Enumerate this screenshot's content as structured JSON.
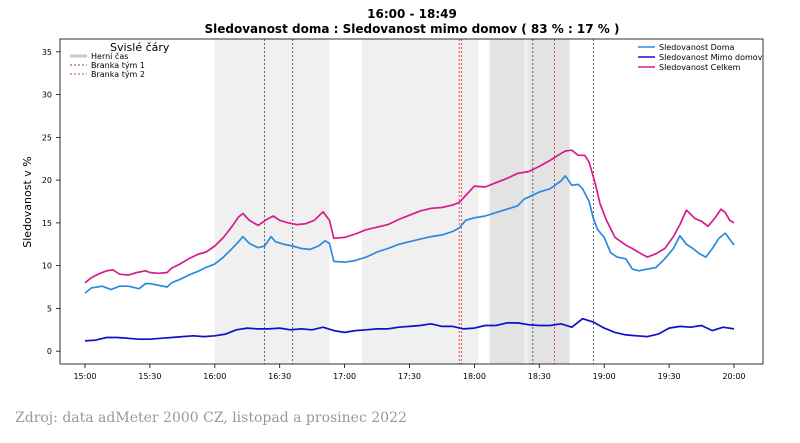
{
  "chart_data": {
    "type": "line",
    "title": "16:00 - 18:49",
    "subtitle": "Sledovanost doma : Sledovanost mimo domov ( 83 % : 17 % )",
    "ylabel": "Sledovanost v %",
    "xlabel": "",
    "xlim": [
      0,
      300
    ],
    "ylim": [
      -1.5,
      36.5
    ],
    "y_ticks": [
      0,
      5,
      10,
      15,
      20,
      25,
      30,
      35
    ],
    "x_ticks": [
      {
        "value": 0,
        "label": "15:00"
      },
      {
        "value": 30,
        "label": "15:30"
      },
      {
        "value": 60,
        "label": "16:00"
      },
      {
        "value": 90,
        "label": "16:30"
      },
      {
        "value": 120,
        "label": "17:00"
      },
      {
        "value": 150,
        "label": "17:30"
      },
      {
        "value": 180,
        "label": "18:00"
      },
      {
        "value": 210,
        "label": "18:30"
      },
      {
        "value": 240,
        "label": "19:00"
      },
      {
        "value": 270,
        "label": "19:30"
      },
      {
        "value": 300,
        "label": "20:00"
      }
    ],
    "legend_left": {
      "title": "Svislé čáry",
      "items": [
        {
          "label": "Herní čas",
          "color": "#c8c8c8",
          "style": "solid"
        },
        {
          "label": "Branka tým 1",
          "color": "#555555",
          "style": "dotted"
        },
        {
          "label": "Branka tým 2",
          "color": "#e04040",
          "style": "dotted"
        }
      ]
    },
    "legend_right": [
      {
        "label": "Sledovanost Doma",
        "color": "#2a8ae0"
      },
      {
        "label": "Sledovanost Mimo domov",
        "color": "#1010c8"
      },
      {
        "label": "Sledovanost Celkem",
        "color": "#d81b8c"
      }
    ],
    "game_periods": [
      {
        "start": 60,
        "end": 113,
        "shade": "#f0f0f0"
      },
      {
        "start": 128,
        "end": 182,
        "shade": "#f0f0f0"
      },
      {
        "start": 187,
        "end": 203,
        "shade": "#e3e3e3"
      },
      {
        "start": 203,
        "end": 205,
        "shade": "#f0f0f0"
      },
      {
        "start": 205,
        "end": 224,
        "shade": "#e3e3e3"
      }
    ],
    "goal_team1": [
      83,
      96,
      207,
      235
    ],
    "goal_team2": [
      173,
      174,
      217
    ],
    "series": [
      {
        "name": "Sledovanost Doma",
        "color": "#2a8ae0",
        "x": [
          0,
          3,
          8,
          12,
          16,
          20,
          25,
          28,
          30,
          34,
          38,
          40,
          44,
          48,
          52,
          56,
          60,
          64,
          68,
          71,
          73,
          76,
          80,
          83,
          86,
          88,
          92,
          96,
          100,
          104,
          108,
          111,
          113,
          115,
          120,
          125,
          130,
          135,
          140,
          145,
          150,
          155,
          160,
          165,
          170,
          173,
          176,
          180,
          185,
          190,
          195,
          200,
          203,
          205,
          210,
          215,
          220,
          222,
          225,
          228,
          230,
          233,
          235,
          237,
          240,
          243,
          246,
          250,
          253,
          256,
          260,
          264,
          268,
          272,
          275,
          278,
          281,
          284,
          287,
          290,
          293,
          296,
          300
        ],
        "values": [
          6.8,
          7.4,
          7.6,
          7.2,
          7.6,
          7.6,
          7.3,
          7.9,
          7.9,
          7.7,
          7.5,
          8.0,
          8.4,
          8.9,
          9.3,
          9.8,
          10.2,
          11.0,
          12.0,
          12.8,
          13.4,
          12.6,
          12.1,
          12.3,
          13.4,
          12.8,
          12.5,
          12.3,
          12.0,
          11.9,
          12.3,
          12.9,
          12.6,
          10.5,
          10.4,
          10.6,
          11.0,
          11.6,
          12.0,
          12.5,
          12.8,
          13.1,
          13.4,
          13.6,
          14.0,
          14.4,
          15.3,
          15.6,
          15.8,
          16.2,
          16.6,
          17.0,
          17.8,
          18.0,
          18.6,
          19.0,
          19.9,
          20.5,
          19.4,
          19.5,
          19.0,
          17.5,
          15.5,
          14.2,
          13.3,
          11.5,
          11.0,
          10.8,
          9.6,
          9.4,
          9.6,
          9.8,
          10.8,
          12.0,
          13.5,
          12.5,
          12.0,
          11.4,
          11.0,
          12.0,
          13.2,
          13.8,
          12.4
        ]
      },
      {
        "name": "Sledovanost Mimo domov",
        "color": "#1010c8",
        "x": [
          0,
          5,
          10,
          15,
          20,
          25,
          30,
          35,
          40,
          45,
          50,
          55,
          60,
          65,
          70,
          75,
          80,
          85,
          90,
          95,
          100,
          105,
          110,
          115,
          120,
          125,
          130,
          135,
          140,
          145,
          150,
          155,
          160,
          165,
          170,
          175,
          180,
          185,
          190,
          195,
          200,
          205,
          210,
          215,
          220,
          225,
          230,
          235,
          240,
          245,
          250,
          255,
          260,
          265,
          270,
          275,
          280,
          285,
          290,
          295,
          300
        ],
        "values": [
          1.2,
          1.3,
          1.6,
          1.6,
          1.5,
          1.4,
          1.4,
          1.5,
          1.6,
          1.7,
          1.8,
          1.7,
          1.8,
          2.0,
          2.5,
          2.7,
          2.6,
          2.6,
          2.7,
          2.5,
          2.6,
          2.5,
          2.8,
          2.4,
          2.2,
          2.4,
          2.5,
          2.6,
          2.6,
          2.8,
          2.9,
          3.0,
          3.2,
          2.9,
          2.9,
          2.6,
          2.7,
          3.0,
          3.0,
          3.3,
          3.3,
          3.1,
          3.0,
          3.0,
          3.2,
          2.8,
          3.8,
          3.4,
          2.7,
          2.2,
          1.9,
          1.8,
          1.7,
          2.0,
          2.7,
          2.9,
          2.8,
          3.0,
          2.4,
          2.8,
          2.6
        ]
      },
      {
        "name": "Sledovanost Celkem",
        "color": "#d81b8c",
        "x": [
          0,
          3,
          6,
          10,
          13,
          16,
          20,
          24,
          28,
          30,
          34,
          38,
          40,
          44,
          48,
          52,
          56,
          60,
          64,
          68,
          71,
          73,
          76,
          80,
          84,
          87,
          90,
          94,
          98,
          102,
          106,
          110,
          113,
          115,
          120,
          125,
          130,
          135,
          140,
          145,
          150,
          155,
          160,
          165,
          170,
          173,
          176,
          180,
          185,
          190,
          195,
          200,
          205,
          210,
          215,
          218,
          222,
          225,
          228,
          231,
          233,
          236,
          238,
          241,
          245,
          250,
          253,
          257,
          260,
          264,
          268,
          272,
          275,
          278,
          282,
          285,
          288,
          291,
          294,
          296,
          298,
          300
        ],
        "values": [
          8.0,
          8.6,
          9.0,
          9.4,
          9.5,
          9.0,
          8.9,
          9.2,
          9.4,
          9.2,
          9.1,
          9.2,
          9.7,
          10.2,
          10.8,
          11.3,
          11.6,
          12.3,
          13.3,
          14.6,
          15.7,
          16.1,
          15.3,
          14.7,
          15.4,
          15.8,
          15.3,
          15.0,
          14.8,
          14.9,
          15.3,
          16.3,
          15.3,
          13.2,
          13.3,
          13.7,
          14.2,
          14.5,
          14.8,
          15.4,
          15.9,
          16.4,
          16.7,
          16.8,
          17.1,
          17.4,
          18.2,
          19.3,
          19.2,
          19.7,
          20.2,
          20.8,
          21.0,
          21.6,
          22.3,
          22.8,
          23.4,
          23.5,
          22.9,
          22.9,
          22.1,
          19.5,
          17.3,
          15.3,
          13.3,
          12.4,
          12.0,
          11.4,
          11.0,
          11.4,
          12.0,
          13.4,
          14.8,
          16.5,
          15.5,
          15.2,
          14.6,
          15.5,
          16.6,
          16.2,
          15.3,
          15.0
        ]
      }
    ]
  },
  "footer": {
    "source": "Zdroj: data adMeter 2000 CZ, listopad a prosinec 2022"
  }
}
